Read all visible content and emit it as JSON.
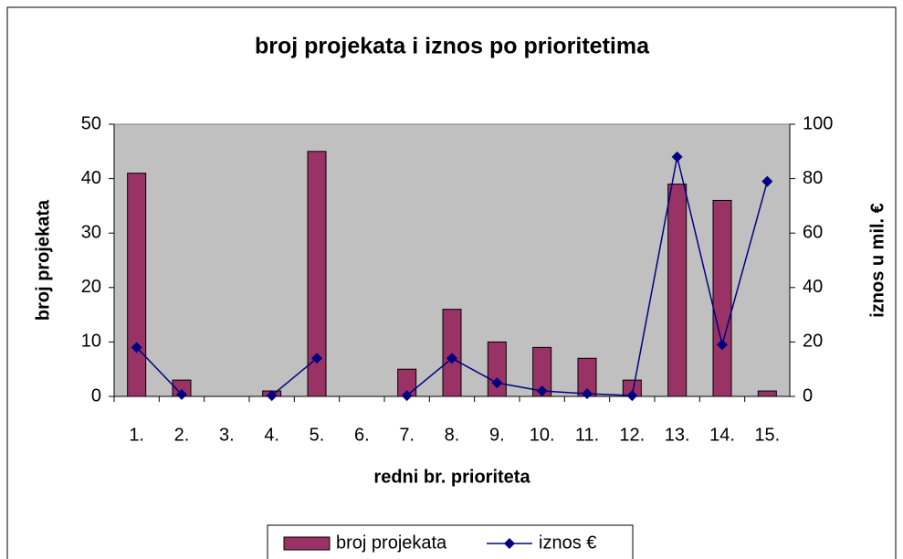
{
  "chart_data": {
    "type": "bar-line",
    "title": "broj projekata i iznos po prioritetima",
    "x_label": "redni br. prioriteta",
    "y_label": "broj projekata",
    "y2_label": "iznos u mil. €",
    "categories": [
      "1.",
      "2.",
      "3.",
      "4.",
      "5.",
      "6.",
      "7.",
      "8.",
      "9.",
      "10.",
      "11.",
      "12.",
      "13.",
      "14.",
      "15."
    ],
    "series": [
      {
        "name": "broj projekata",
        "type": "bar",
        "color": "#993366",
        "values": [
          41,
          3,
          null,
          1,
          45,
          null,
          5,
          16,
          10,
          9,
          7,
          3,
          39,
          36,
          1
        ]
      },
      {
        "name": "iznos €",
        "type": "line",
        "axis": "y2",
        "color": "#000080",
        "values": [
          18,
          0.7,
          null,
          0.3,
          14,
          null,
          0.3,
          14,
          5,
          2,
          1,
          0.3,
          88,
          19,
          79
        ]
      }
    ],
    "ylim": [
      0,
      50
    ],
    "yticks": [
      0,
      10,
      20,
      30,
      40,
      50
    ],
    "y2lim": [
      0,
      100
    ],
    "y2ticks": [
      0,
      20,
      40,
      60,
      80,
      100
    ],
    "legend": "bottom"
  }
}
